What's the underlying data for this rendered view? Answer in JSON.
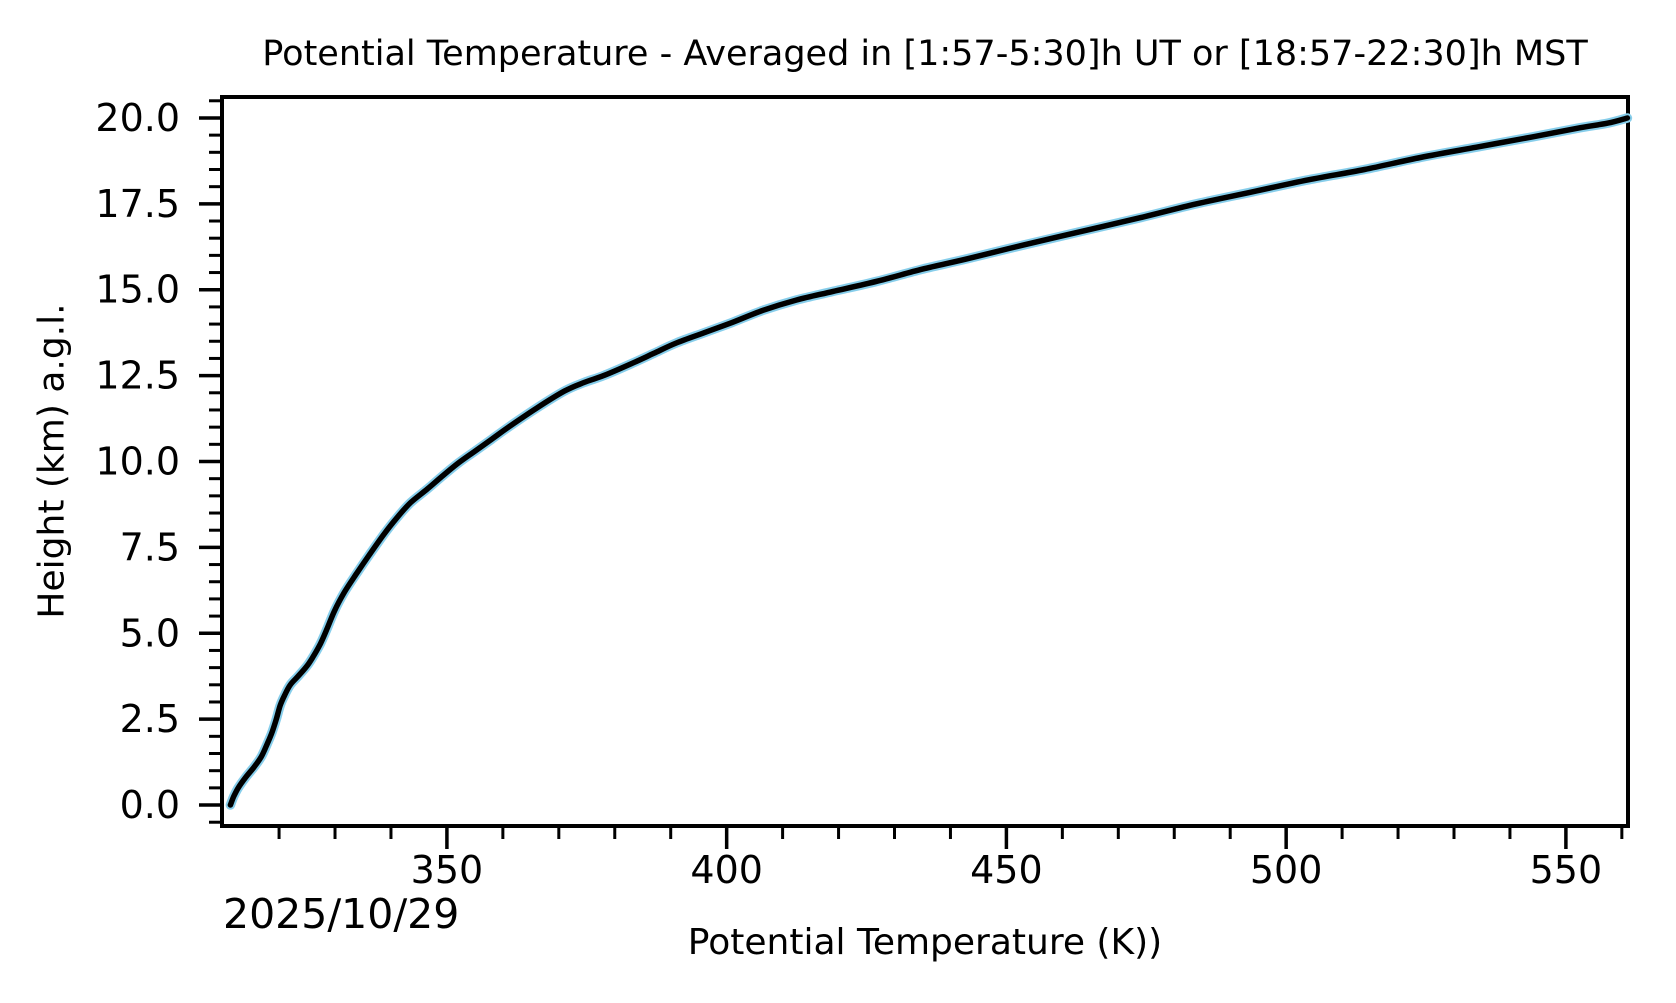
{
  "figure": {
    "title": "Potential Temperature - Averaged in [1:57-5:30]h UT or [18:57-22:30]h MST",
    "xlabel": "Potential Temperature (K))",
    "ylabel": "Height (km) a.g.l.",
    "date_label": "2025/10/29"
  },
  "colors": {
    "background": "#ffffff",
    "axes": "#000000",
    "mean_curve": "#000000",
    "profiles_underlay": "#87CEEB"
  },
  "chart_data": {
    "type": "line",
    "title": "Potential Temperature - Averaged in [1:57-5:30]h UT or [18:57-22:30]h MST",
    "xlabel": "Potential Temperature (K))",
    "ylabel": "Height (km) a.g.l.",
    "annotations": [
      "2025/10/29"
    ],
    "grid": false,
    "legend": "none",
    "xlim": [
      309.8,
      561.1
    ],
    "ylim": [
      -0.61,
      20.61
    ],
    "x_major_ticks": [
      350,
      400,
      450,
      500,
      550
    ],
    "x_major_tick_labels": [
      "350",
      "400",
      "450",
      "500",
      "550"
    ],
    "x_minor_tick_step": 10,
    "y_major_ticks": [
      0,
      2.5,
      5,
      7.5,
      10,
      12.5,
      15,
      17.5,
      20
    ],
    "y_major_tick_labels": [
      "0.0",
      "2.5",
      "5.0",
      "7.5",
      "10.0",
      "12.5",
      "15.0",
      "17.5",
      "20.0"
    ],
    "y_minor_tick_step": 0.5,
    "points": {
      "mean": [
        [
          311.3,
          0.0
        ],
        [
          311.9,
          0.25
        ],
        [
          312.7,
          0.5
        ],
        [
          314.0,
          0.8
        ],
        [
          315.5,
          1.1
        ],
        [
          316.8,
          1.4
        ],
        [
          317.8,
          1.75
        ],
        [
          318.7,
          2.1
        ],
        [
          319.5,
          2.5
        ],
        [
          320.2,
          2.9
        ],
        [
          321.0,
          3.2
        ],
        [
          322.0,
          3.5
        ],
        [
          323.4,
          3.75
        ],
        [
          325.0,
          4.05
        ],
        [
          326.2,
          4.35
        ],
        [
          327.4,
          4.7
        ],
        [
          328.5,
          5.1
        ],
        [
          329.9,
          5.65
        ],
        [
          331.7,
          6.2
        ],
        [
          333.9,
          6.75
        ],
        [
          336.2,
          7.3
        ],
        [
          338.6,
          7.85
        ],
        [
          341.0,
          8.35
        ],
        [
          343.5,
          8.8
        ],
        [
          346.5,
          9.2
        ],
        [
          349.0,
          9.55
        ],
        [
          352.0,
          9.95
        ],
        [
          355.0,
          10.3
        ],
        [
          358.0,
          10.65
        ],
        [
          361.0,
          11.0
        ],
        [
          366.0,
          11.55
        ],
        [
          371.0,
          12.05
        ],
        [
          374.5,
          12.3
        ],
        [
          378.0,
          12.5
        ],
        [
          383.0,
          12.85
        ],
        [
          387.0,
          13.15
        ],
        [
          391.0,
          13.45
        ],
        [
          396.0,
          13.75
        ],
        [
          401.0,
          14.05
        ],
        [
          406.5,
          14.4
        ],
        [
          412.5,
          14.7
        ],
        [
          419.0,
          14.95
        ],
        [
          427.0,
          15.25
        ],
        [
          435.0,
          15.6
        ],
        [
          443.0,
          15.9
        ],
        [
          453.0,
          16.3
        ],
        [
          463.5,
          16.7
        ],
        [
          474.0,
          17.1
        ],
        [
          484.0,
          17.5
        ],
        [
          494.0,
          17.85
        ],
        [
          504.0,
          18.2
        ],
        [
          514.0,
          18.5
        ],
        [
          524.0,
          18.85
        ],
        [
          534.0,
          19.15
        ],
        [
          544.0,
          19.45
        ],
        [
          552.0,
          19.7
        ],
        [
          557.5,
          19.85
        ],
        [
          561.0,
          20.0
        ]
      ]
    },
    "series": [
      {
        "name": "individual-profiles-underlay",
        "points_ref": "mean",
        "color": "#87CEEB",
        "stroke_width": 9.5
      },
      {
        "name": "mean-profile",
        "points_ref": "mean",
        "color": "#000000",
        "stroke_width": 5.5
      }
    ]
  }
}
